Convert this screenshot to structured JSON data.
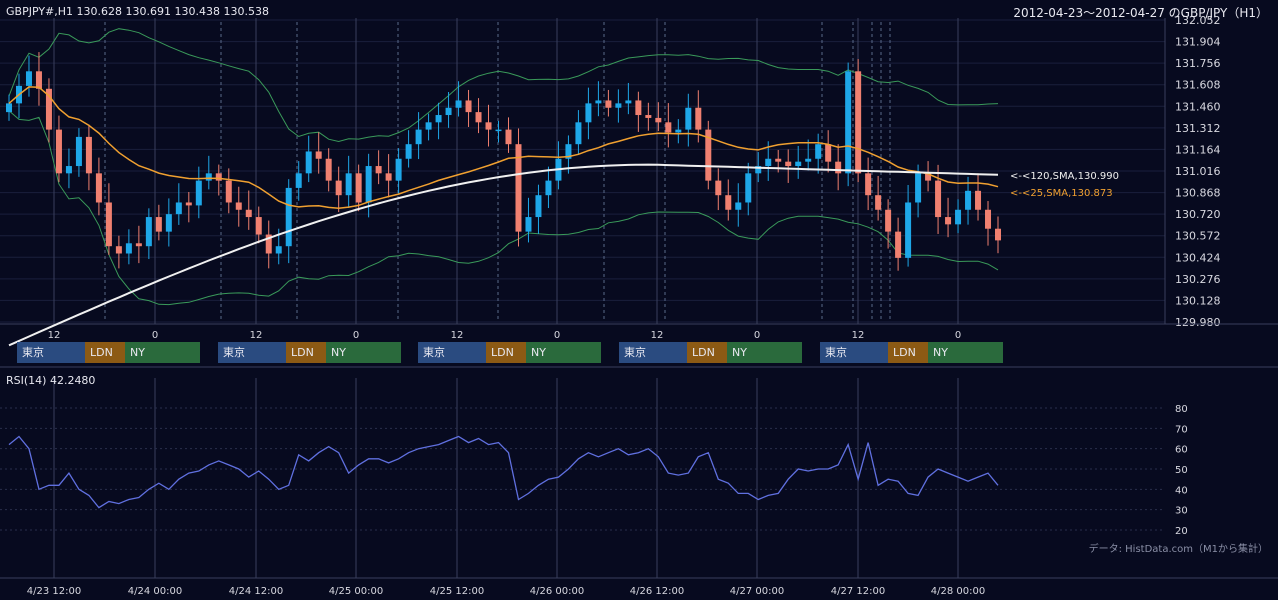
{
  "header": {
    "symbol_ohlc": "GBPJPY#,H1 130.628 130.691 130.438 130.538",
    "period": "2012-04-23～2012-04-27 のGBP/JPY（H1）"
  },
  "source_note": "データ: HistData.com（M1から集計）",
  "sessions": {
    "tokyo": "東京",
    "london": "LDN",
    "ny": "NY"
  },
  "colors": {
    "up": "#1ea7e8",
    "down": "#f08070",
    "sma25": "#f0a030",
    "sma120": "#f0f0f0",
    "band": "#3a9a5a",
    "rsi": "#6070e0",
    "bg": "#070a1f"
  },
  "chart_data": [
    {
      "type": "candlestick",
      "title": "GBPJPY#,H1 130.628 130.691 130.438 130.538",
      "ylim": [
        129.98,
        132.052
      ],
      "y_ticks": [
        "132.052",
        "131.904",
        "131.756",
        "131.608",
        "131.460",
        "131.312",
        "131.164",
        "131.016",
        "130.868",
        "130.720",
        "130.572",
        "130.424",
        "130.276",
        "130.128",
        "129.980"
      ],
      "x_ticks": [
        "12",
        "0",
        "12",
        "0",
        "12",
        "0",
        "12",
        "0",
        "12",
        "0"
      ],
      "indicators": [
        {
          "name": "<-<120,SMA,130.990",
          "value": 130.99,
          "color": "#f0f0f0"
        },
        {
          "name": "<-<25,SMA,130.873",
          "value": 130.873,
          "color": "#f0a030"
        },
        {
          "name": "Bollinger Bands",
          "color": "#3a9a5a"
        }
      ],
      "close": [
        131.48,
        131.6,
        131.7,
        131.58,
        131.3,
        131.0,
        131.05,
        131.25,
        131.0,
        130.8,
        130.5,
        130.45,
        130.52,
        130.5,
        130.7,
        130.6,
        130.72,
        130.8,
        130.78,
        130.95,
        131.0,
        130.95,
        130.8,
        130.75,
        130.7,
        130.58,
        130.45,
        130.5,
        130.9,
        131.0,
        131.15,
        131.1,
        130.95,
        130.85,
        131.0,
        130.8,
        131.05,
        131.0,
        130.95,
        131.1,
        131.2,
        131.3,
        131.35,
        131.4,
        131.45,
        131.5,
        131.42,
        131.35,
        131.3,
        131.3,
        131.2,
        130.6,
        130.7,
        130.85,
        130.95,
        131.1,
        131.2,
        131.35,
        131.48,
        131.5,
        131.45,
        131.48,
        131.5,
        131.4,
        131.38,
        131.35,
        131.28,
        131.3,
        131.45,
        131.3,
        130.95,
        130.85,
        130.75,
        130.8,
        131.0,
        131.05,
        131.1,
        131.08,
        131.05,
        131.08,
        131.1,
        131.2,
        131.08,
        131.0,
        131.7,
        131.0,
        130.85,
        130.75,
        130.6,
        130.42,
        130.8,
        131.0,
        130.95,
        130.7,
        130.65,
        130.75,
        130.88,
        130.75,
        130.62,
        130.54
      ],
      "rsi": {
        "label": "RSI(14) 42.2480",
        "ylim": [
          20,
          80
        ],
        "y_ticks": [
          "80",
          "70",
          "60",
          "50",
          "40",
          "30",
          "20"
        ],
        "values": [
          62,
          66,
          60,
          40,
          42,
          42,
          48,
          40,
          37,
          31,
          34,
          33,
          35,
          36,
          40,
          43,
          40,
          45,
          48,
          49,
          52,
          54,
          52,
          50,
          46,
          49,
          45,
          40,
          42,
          57,
          54,
          58,
          61,
          58,
          48,
          52,
          55,
          55,
          53,
          55,
          58,
          60,
          61,
          62,
          64,
          66,
          63,
          65,
          62,
          63,
          58,
          35,
          38,
          42,
          45,
          46,
          50,
          55,
          58,
          56,
          58,
          60,
          57,
          58,
          60,
          56,
          48,
          47,
          48,
          56,
          58,
          45,
          43,
          38,
          38,
          35,
          37,
          38,
          45,
          50,
          49,
          50,
          50,
          52,
          62,
          45,
          63,
          42,
          45,
          44,
          38,
          37,
          46,
          50,
          48,
          46,
          44,
          46,
          48,
          42
        ]
      },
      "x_labels": [
        "4/23 12:00",
        "4/24 00:00",
        "4/24 12:00",
        "4/25 00:00",
        "4/25 12:00",
        "4/26 00:00",
        "4/26 12:00",
        "4/27 00:00",
        "4/27 12:00",
        "4/28 00:00"
      ]
    }
  ]
}
